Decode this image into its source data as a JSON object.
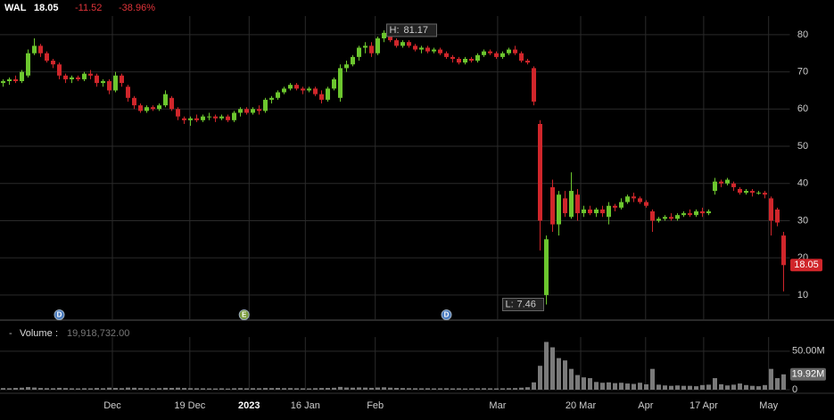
{
  "chart_data": [
    {
      "type": "candlestick",
      "title": "WAL",
      "change": -11.52,
      "change_pct": {
        "value": -38.96,
        "label": "-38.96%"
      },
      "up_color": "#6cc62e",
      "down_color": "#d0262b",
      "xlim": [
        -0.5,
        126
      ],
      "ylim": [
        3.5,
        85
      ],
      "yticks": [
        10,
        20,
        30,
        40,
        50,
        60,
        70,
        80
      ],
      "grid": true,
      "high_label": "H:",
      "high_index": 61,
      "low_label": "L:",
      "low_index": 87,
      "events": [
        {
          "label": "D",
          "x": 9
        },
        {
          "label": "E",
          "x": 38.6
        },
        {
          "label": "D",
          "x": 71
        }
      ],
      "ohlc": [
        [
          67,
          68,
          66,
          67.5
        ],
        [
          67.5,
          68.5,
          66.5,
          68
        ],
        [
          68,
          69,
          67,
          67.5
        ],
        [
          67.5,
          70.5,
          67,
          70
        ],
        [
          69,
          76,
          68.5,
          75
        ],
        [
          75,
          79,
          74.5,
          77
        ],
        [
          77,
          77.5,
          74,
          75
        ],
        [
          75,
          75.5,
          72.5,
          73
        ],
        [
          73,
          73.5,
          71,
          72
        ],
        [
          72,
          72.5,
          68,
          69
        ],
        [
          69,
          69.5,
          67,
          68
        ],
        [
          68,
          69,
          67,
          68.5
        ],
        [
          68.5,
          69,
          67.5,
          68
        ],
        [
          68,
          70,
          67.5,
          69.5
        ],
        [
          69.5,
          70.5,
          68,
          69
        ],
        [
          69,
          69.5,
          66,
          67
        ],
        [
          67,
          68,
          66,
          67.5
        ],
        [
          67.5,
          68,
          64,
          65
        ],
        [
          65,
          70,
          64.5,
          69
        ],
        [
          69,
          69.5,
          66,
          67
        ],
        [
          66,
          66.5,
          62,
          63
        ],
        [
          63,
          63.5,
          60,
          61
        ],
        [
          61,
          61.5,
          59,
          59.5
        ],
        [
          59.5,
          61,
          59,
          60.5
        ],
        [
          60.5,
          61,
          59.5,
          60
        ],
        [
          60,
          61.5,
          59.5,
          61
        ],
        [
          61,
          65,
          60.5,
          64
        ],
        [
          63,
          63.5,
          59.5,
          60
        ],
        [
          60,
          60.5,
          57,
          58
        ],
        [
          57.5,
          58,
          56,
          57
        ],
        [
          57,
          58,
          55.5,
          57.5
        ],
        [
          57.5,
          58.5,
          56.5,
          57
        ],
        [
          57,
          58.5,
          56.5,
          58
        ],
        [
          58,
          59,
          57,
          58
        ],
        [
          58,
          58.5,
          56.5,
          57.5
        ],
        [
          57.5,
          58.5,
          57,
          58
        ],
        [
          58,
          58.5,
          56.5,
          57
        ],
        [
          57,
          59.5,
          56.5,
          59
        ],
        [
          59,
          60.5,
          58,
          60
        ],
        [
          60,
          60.5,
          58.5,
          59
        ],
        [
          59,
          60.5,
          58.5,
          60
        ],
        [
          60,
          61,
          58.5,
          59.5
        ],
        [
          59.5,
          63,
          59,
          62.5
        ],
        [
          62.5,
          63.5,
          61.5,
          63
        ],
        [
          63,
          65,
          62.5,
          64.5
        ],
        [
          64.5,
          66,
          64,
          65.5
        ],
        [
          65.5,
          67,
          65,
          66.5
        ],
        [
          66.5,
          67,
          65,
          65.5
        ],
        [
          65.5,
          66,
          64,
          65
        ],
        [
          65,
          66,
          64.5,
          65.5
        ],
        [
          65.5,
          66,
          63.5,
          64
        ],
        [
          64,
          65,
          61.5,
          62.5
        ],
        [
          62.5,
          66,
          62,
          65.5
        ],
        [
          65.5,
          68.5,
          65,
          68
        ],
        [
          63,
          72,
          62,
          71
        ],
        [
          71,
          73,
          70,
          72
        ],
        [
          72,
          74.5,
          71.5,
          74
        ],
        [
          74,
          77,
          73,
          76.5
        ],
        [
          76.5,
          78,
          75,
          77
        ],
        [
          77,
          78,
          74,
          75
        ],
        [
          75,
          79.5,
          74.5,
          79
        ],
        [
          79,
          81.17,
          78,
          80.5
        ],
        [
          80.5,
          81,
          78,
          78.5
        ],
        [
          78.5,
          79,
          76.5,
          77
        ],
        [
          77,
          78.5,
          76.5,
          78
        ],
        [
          78,
          78.5,
          76.5,
          77
        ],
        [
          77,
          77.5,
          75.5,
          76
        ],
        [
          76,
          77,
          75,
          76.5
        ],
        [
          76.5,
          77,
          75,
          75.5
        ],
        [
          75.5,
          76.5,
          75,
          76
        ],
        [
          76,
          76.5,
          74.5,
          75
        ],
        [
          75,
          75.5,
          73.5,
          74
        ],
        [
          74,
          74.5,
          72.5,
          73.5
        ],
        [
          73.5,
          74,
          72,
          72.5
        ],
        [
          72.5,
          74,
          72,
          73.5
        ],
        [
          73.5,
          74,
          72.5,
          73
        ],
        [
          73,
          75,
          72.5,
          74.5
        ],
        [
          74.5,
          76,
          74,
          75.5
        ],
        [
          75.5,
          76,
          74.5,
          75
        ],
        [
          75,
          75.5,
          73.5,
          74
        ],
        [
          74,
          75.5,
          73.5,
          75
        ],
        [
          75,
          76.5,
          74.5,
          76
        ],
        [
          76,
          77,
          74.5,
          75
        ],
        [
          75,
          75.5,
          72.5,
          73
        ],
        [
          73,
          73.5,
          72,
          72.5
        ],
        [
          71,
          71.5,
          61,
          62
        ],
        [
          56,
          57,
          22,
          30
        ],
        [
          10,
          26,
          7.46,
          25
        ],
        [
          39,
          41,
          27,
          29
        ],
        [
          29,
          38,
          26,
          37
        ],
        [
          36,
          38,
          31,
          32
        ],
        [
          31,
          43,
          30.5,
          38
        ],
        [
          37,
          38.5,
          30,
          32
        ],
        [
          32,
          34,
          31,
          33
        ],
        [
          33,
          34,
          31.5,
          32
        ],
        [
          32,
          33.5,
          31,
          33
        ],
        [
          33,
          34,
          31,
          32
        ],
        [
          31,
          35,
          29,
          34
        ],
        [
          34,
          34.5,
          32.5,
          33.5
        ],
        [
          33.5,
          36,
          33,
          35
        ],
        [
          35,
          37,
          34.5,
          36.5
        ],
        [
          36.5,
          37.5,
          35,
          36
        ],
        [
          36,
          36.5,
          34.5,
          35
        ],
        [
          35,
          35.5,
          33.5,
          34
        ],
        [
          32.5,
          33,
          27,
          30
        ],
        [
          30,
          31,
          29.5,
          30.5
        ],
        [
          30.5,
          31.5,
          30,
          31
        ],
        [
          31,
          32,
          30,
          30.5
        ],
        [
          30.5,
          32,
          30,
          31.5
        ],
        [
          31.5,
          32.5,
          31,
          32
        ],
        [
          32,
          33,
          31,
          31.5
        ],
        [
          31.5,
          33,
          31,
          32.5
        ],
        [
          32.5,
          33.5,
          31,
          32
        ],
        [
          32,
          33,
          31.5,
          32.5
        ],
        [
          38,
          41.5,
          37,
          40.5
        ],
        [
          40.5,
          41,
          39,
          40
        ],
        [
          40,
          41.5,
          39.5,
          41
        ],
        [
          40,
          40.5,
          38,
          39
        ],
        [
          38.5,
          39,
          37,
          37.5
        ],
        [
          37.5,
          38.5,
          37,
          38
        ],
        [
          38,
          38.5,
          36.5,
          37.5
        ],
        [
          37.5,
          38,
          37,
          37.5
        ],
        [
          37.5,
          38,
          36,
          37
        ],
        [
          36,
          36.5,
          26,
          30
        ],
        [
          33,
          33.5,
          28.5,
          29.5
        ],
        [
          26,
          27,
          11,
          18.05
        ]
      ]
    },
    {
      "type": "bar",
      "title": "Volume",
      "legend_value": "19,918,732.00",
      "last_label": "19.92M",
      "color": "#7a7a7a",
      "ylim": [
        0,
        66000000
      ],
      "yticks": [
        0,
        {
          "value": 50000000,
          "label": "50.00M"
        }
      ],
      "xticks": [
        {
          "value": 17.5,
          "label": "Dec"
        },
        {
          "value": 29.9,
          "label": "19 Dec"
        },
        {
          "value": 39.4,
          "label": "2023"
        },
        {
          "value": 48.4,
          "label": "16 Jan"
        },
        {
          "value": 59.6,
          "label": "Feb"
        },
        {
          "value": 79.2,
          "label": "Mar"
        },
        {
          "value": 92.5,
          "label": "20 Mar"
        },
        {
          "value": 102.9,
          "label": "Apr"
        },
        {
          "value": 112.2,
          "label": "17 Apr"
        },
        {
          "value": 122.6,
          "label": "May"
        }
      ],
      "values": [
        2100000,
        1900000,
        2300000,
        2600000,
        3400000,
        2800000,
        2200000,
        2000000,
        1900000,
        2400000,
        2100000,
        1800000,
        1700000,
        1900000,
        1800000,
        2200000,
        1900000,
        2600000,
        2300000,
        2000000,
        2700000,
        2500000,
        2100000,
        1900000,
        1800000,
        2000000,
        2400000,
        2300000,
        2600000,
        2200000,
        2000000,
        1900000,
        1800000,
        1700000,
        1600000,
        1800000,
        1500000,
        1900000,
        2100000,
        1800000,
        2000000,
        1900000,
        2200000,
        2100000,
        2300000,
        2000000,
        2100000,
        1900000,
        1800000,
        1700000,
        2000000,
        2200000,
        2300000,
        2500000,
        3600000,
        2800000,
        2600000,
        2900000,
        2700000,
        2400000,
        2800000,
        3100000,
        2600000,
        2300000,
        2100000,
        2000000,
        1900000,
        1800000,
        1900000,
        1700000,
        1800000,
        1900000,
        1700000,
        1800000,
        1600000,
        1700000,
        1800000,
        1900000,
        1800000,
        1700000,
        1800000,
        2000000,
        2100000,
        2600000,
        3200000,
        9500000,
        31000000,
        62000000,
        55000000,
        41000000,
        38000000,
        27000000,
        19000000,
        16000000,
        15000000,
        10000000,
        9000000,
        9500000,
        8500000,
        9000000,
        8000000,
        7500000,
        9000000,
        7000000,
        27000000,
        6500000,
        5500000,
        5000000,
        5500000,
        5000000,
        5000000,
        4500000,
        6000000,
        6500000,
        15000000,
        7000000,
        5500000,
        6500000,
        8000000,
        6000000,
        5000000,
        4500000,
        6000000,
        27000000,
        15000000,
        19918732
      ]
    }
  ]
}
